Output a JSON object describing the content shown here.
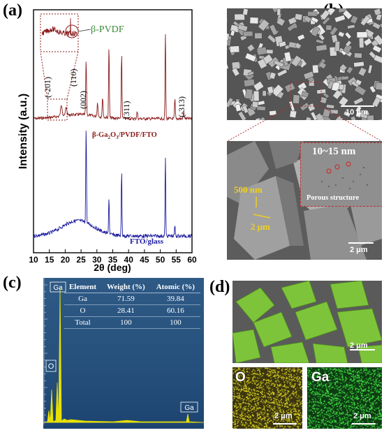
{
  "panels": {
    "a": "(a)",
    "b": "(b)",
    "c": "(c)",
    "d": "(d)"
  },
  "xrd": {
    "ylabel": "Intensity (a.u.)",
    "xlabel": "2θ (deg)",
    "ticks": [
      "10",
      "15",
      "20",
      "25",
      "30",
      "35",
      "40",
      "45",
      "50",
      "55",
      "60"
    ],
    "inset_label": "β-PVDF",
    "peak_labels": [
      "(-201)",
      "(110)",
      "(002)",
      "(311)",
      "(-313)"
    ],
    "sample_top": "β-Ga",
    "sample_top_sub": "2",
    "sample_top_mid": "O",
    "sample_top_sub2": "3",
    "sample_top_end": "/PVDF/FTO",
    "sample_bottom": "FTO/glass",
    "colors": {
      "top": "#8b1a1a",
      "bottom": "#1a1aa0"
    }
  },
  "sem": {
    "top_scale": "10 μm",
    "bottom_scale": "2 μm",
    "dim_1": "500 nm",
    "dim_2": "2 μm",
    "inset_pore": "10~15 nm",
    "inset_caption": "Porous structure"
  },
  "eds": {
    "peak_ga_top": "Ga",
    "peak_o": "O",
    "peak_ga_right": "Ga",
    "headers": [
      "Element",
      "Weight (%)",
      "Atomic (%)"
    ],
    "rows": [
      [
        "Ga",
        "71.59",
        "39.84"
      ],
      [
        "O",
        "28.41",
        "60.16"
      ],
      [
        "Total",
        "100",
        "100"
      ]
    ]
  },
  "maps": {
    "main_scale": "2 μm",
    "o_label": "O",
    "o_scale": "2 μm",
    "ga_label": "Ga",
    "ga_scale": "2 μm"
  }
}
